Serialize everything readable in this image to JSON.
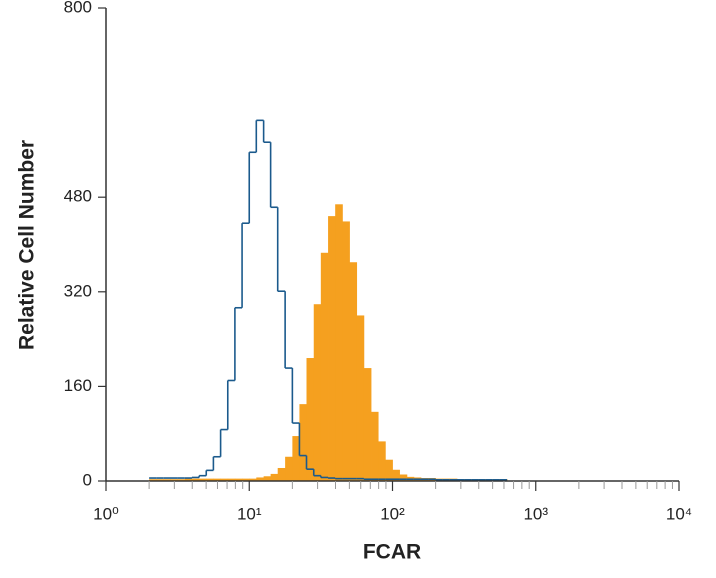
{
  "chart_data": {
    "type": "histogram",
    "x_label": "FCAR",
    "y_label": "Relative Cell Number",
    "xscale": "log",
    "xlim": [
      1,
      10000
    ],
    "ylim": [
      0,
      800
    ],
    "xticks": [
      {
        "value": 1,
        "label": "10⁰"
      },
      {
        "value": 10,
        "label": "10¹"
      },
      {
        "value": 100,
        "label": "10²"
      },
      {
        "value": 1000,
        "label": "10³"
      },
      {
        "value": 10000,
        "label": "10⁴"
      }
    ],
    "xminor_ticks": [
      2,
      3,
      4,
      5,
      6,
      7,
      8,
      9,
      20,
      30,
      40,
      50,
      60,
      70,
      80,
      90,
      200,
      300,
      400,
      500,
      600,
      700,
      800,
      900,
      2000,
      3000,
      4000,
      5000,
      6000,
      7000,
      8000,
      9000
    ],
    "yticks": [
      0,
      160,
      320,
      480,
      800
    ],
    "bins": [
      2.0,
      2.24,
      2.51,
      2.82,
      3.16,
      3.55,
      3.98,
      4.47,
      5.01,
      5.62,
      6.31,
      7.08,
      7.94,
      8.91,
      10,
      11.2,
      12.6,
      14.1,
      15.8,
      17.8,
      20.0,
      22.4,
      25.1,
      28.2,
      31.6,
      35.5,
      39.8,
      44.7,
      50.1,
      56.2,
      63.1,
      70.8,
      79.4,
      89.1,
      100,
      112,
      126,
      141,
      158,
      178,
      200,
      224,
      251,
      282,
      316,
      355,
      398,
      447,
      501,
      562,
      631
    ],
    "series": [
      {
        "color": "#f5a01f",
        "fill": true,
        "values": [
          3,
          3,
          3,
          3,
          3,
          4,
          4,
          4,
          4,
          4,
          4,
          4,
          4,
          4,
          4,
          6,
          8,
          12,
          22,
          41,
          76,
          130,
          208,
          299,
          386,
          448,
          468,
          439,
          370,
          280,
          191,
          117,
          67,
          36,
          19,
          11,
          7,
          6,
          5,
          5,
          4,
          4,
          4,
          3,
          3,
          3,
          3,
          3,
          3,
          3
        ]
      },
      {
        "color": "#1b5a8c",
        "fill": false,
        "values": [
          5,
          5,
          5,
          5,
          5,
          5,
          6,
          9,
          18,
          41,
          87,
          170,
          293,
          436,
          556,
          610,
          573,
          463,
          321,
          191,
          98,
          43,
          20,
          9,
          6,
          5,
          4,
          4,
          4,
          4,
          3,
          3,
          3,
          3,
          3,
          3,
          3,
          3,
          3,
          3,
          2,
          2,
          2,
          2,
          2,
          2,
          2,
          2,
          2,
          2
        ]
      }
    ]
  }
}
